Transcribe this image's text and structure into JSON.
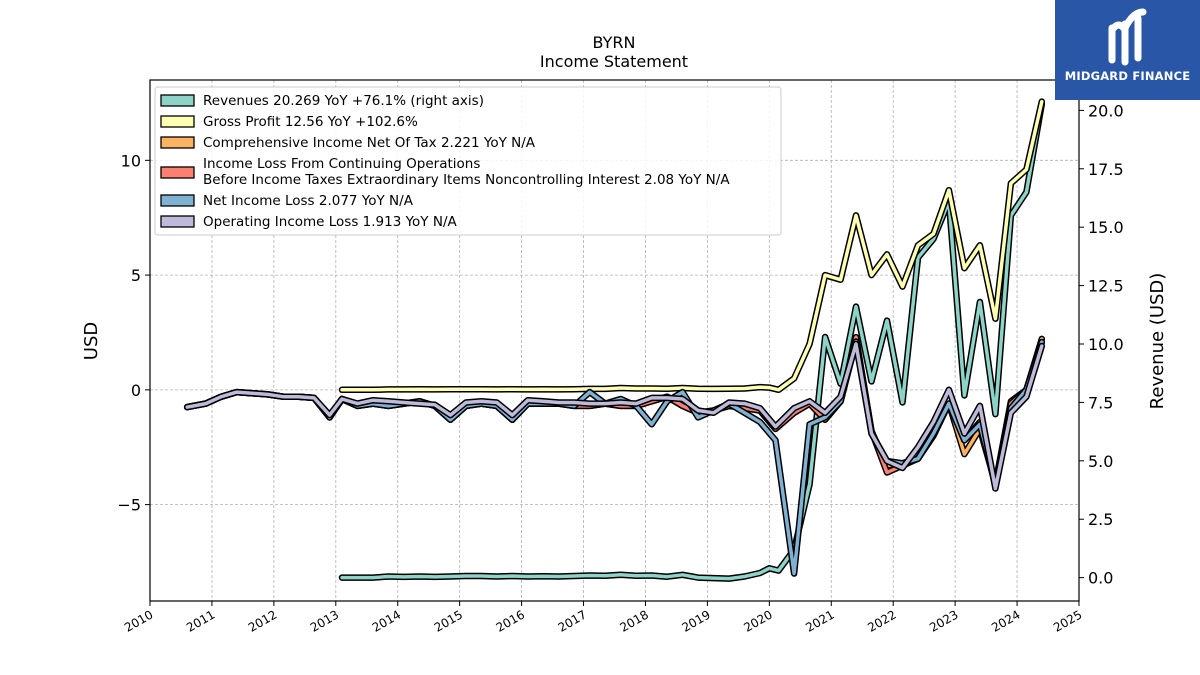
{
  "chart_data": {
    "type": "line",
    "title": "BYRN",
    "subtitle": "Income Statement",
    "ylabel": "USD",
    "y2label": "Revenue (USD)",
    "ylim": [
      -9.2,
      13.5
    ],
    "y2lim": [
      -1.0,
      21.3
    ],
    "yticks": [
      -5,
      0,
      5,
      10
    ],
    "y2ticks": [
      0.0,
      2.5,
      5.0,
      7.5,
      10.0,
      12.5,
      15.0,
      17.5,
      20.0
    ],
    "xlim": [
      2010,
      2025
    ],
    "xticks": [
      "2010",
      "2011",
      "2012",
      "2013",
      "2014",
      "2015",
      "2016",
      "2017",
      "2018",
      "2019",
      "2020",
      "2021",
      "2022",
      "2023",
      "2024",
      "2025"
    ],
    "grid": true,
    "legend_position": "top-left",
    "series": [
      {
        "name": "Revenues  20.269 YoY +76.1% (right axis)",
        "color": "#8dd3c7",
        "axis": "right",
        "x": [
          2013.1,
          2013.35,
          2013.6,
          2013.85,
          2014.1,
          2014.35,
          2014.6,
          2014.85,
          2015.1,
          2015.35,
          2015.6,
          2015.85,
          2016.1,
          2016.35,
          2016.6,
          2016.85,
          2017.1,
          2017.35,
          2017.6,
          2017.85,
          2018.1,
          2018.35,
          2018.6,
          2018.85,
          2019.1,
          2019.35,
          2019.6,
          2019.85,
          2020.0,
          2020.15,
          2020.4,
          2020.65,
          2020.9,
          2021.15,
          2021.4,
          2021.65,
          2021.9,
          2022.15,
          2022.4,
          2022.65,
          2022.9,
          2023.15,
          2023.4,
          2023.65,
          2023.9,
          2024.15,
          2024.4
        ],
        "values": [
          0.0,
          0.0,
          0.0,
          0.05,
          0.03,
          0.05,
          0.03,
          0.05,
          0.07,
          0.07,
          0.05,
          0.07,
          0.05,
          0.06,
          0.05,
          0.07,
          0.09,
          0.08,
          0.12,
          0.08,
          0.09,
          0.04,
          0.12,
          0.0,
          -0.02,
          -0.04,
          0.05,
          0.2,
          0.4,
          0.3,
          1.2,
          4.0,
          10.3,
          8.3,
          11.6,
          8.4,
          11.0,
          7.5,
          13.7,
          14.5,
          16.1,
          7.8,
          11.8,
          7.0,
          15.5,
          16.5,
          20.27
        ]
      },
      {
        "name": "Gross Profit  12.56 YoY +102.6%",
        "color": "#ffffb3",
        "axis": "left",
        "x": [
          2013.1,
          2013.35,
          2013.6,
          2013.85,
          2014.1,
          2014.35,
          2014.6,
          2014.85,
          2015.1,
          2015.35,
          2015.6,
          2015.85,
          2016.1,
          2016.35,
          2016.6,
          2016.85,
          2017.1,
          2017.35,
          2017.6,
          2017.85,
          2018.1,
          2018.35,
          2018.6,
          2018.85,
          2019.1,
          2019.35,
          2019.6,
          2019.85,
          2020.0,
          2020.15,
          2020.4,
          2020.65,
          2020.9,
          2021.15,
          2021.4,
          2021.65,
          2021.9,
          2022.15,
          2022.4,
          2022.65,
          2022.9,
          2023.15,
          2023.4,
          2023.65,
          2023.9,
          2024.15,
          2024.4
        ],
        "values": [
          0.0,
          0.0,
          0.0,
          0.02,
          0.02,
          0.03,
          0.02,
          0.03,
          0.03,
          0.03,
          0.02,
          0.03,
          0.02,
          0.03,
          0.02,
          0.03,
          0.04,
          0.04,
          0.08,
          0.06,
          0.06,
          0.05,
          0.08,
          0.05,
          0.04,
          0.05,
          0.06,
          0.12,
          0.1,
          0.0,
          0.5,
          2.0,
          5.0,
          4.8,
          7.6,
          5.0,
          5.9,
          4.5,
          6.3,
          6.8,
          8.7,
          5.3,
          6.3,
          3.1,
          9.0,
          9.6,
          12.56
        ]
      },
      {
        "name": "Comprehensive Income Net Of Tax  2.221 YoY N/A",
        "color": "#fdb462",
        "axis": "left",
        "x": [
          2010.6,
          2010.9,
          2011.15,
          2011.4,
          2011.65,
          2011.9,
          2012.15,
          2012.4,
          2012.65,
          2012.9,
          2013.1,
          2013.35,
          2013.6,
          2013.85,
          2014.1,
          2014.35,
          2014.6,
          2014.85,
          2015.1,
          2015.35,
          2015.6,
          2015.85,
          2016.1,
          2016.35,
          2016.6,
          2016.85,
          2017.1,
          2017.35,
          2017.6,
          2017.85,
          2018.1,
          2018.35,
          2018.6,
          2018.85,
          2019.1,
          2019.35,
          2019.6,
          2019.85,
          2020.1,
          2020.4,
          2020.65,
          2020.9,
          2021.15,
          2021.4,
          2021.65,
          2021.9,
          2022.15,
          2022.4,
          2022.65,
          2022.9,
          2023.15,
          2023.4,
          2023.65,
          2023.9,
          2024.15,
          2024.4
        ],
        "values": [
          -0.75,
          -0.6,
          -0.3,
          -0.1,
          -0.15,
          -0.2,
          -0.3,
          -0.3,
          -0.35,
          -1.2,
          -0.4,
          -0.7,
          -0.6,
          -0.7,
          -0.6,
          -0.5,
          -0.7,
          -1.3,
          -0.7,
          -0.6,
          -0.7,
          -1.3,
          -0.6,
          -0.6,
          -0.6,
          -0.7,
          -0.7,
          -0.6,
          -0.7,
          -0.7,
          -0.5,
          -0.3,
          -0.7,
          -1.0,
          -0.9,
          -0.7,
          -0.8,
          -0.9,
          -1.7,
          -1.0,
          -0.6,
          -1.3,
          -0.5,
          2.2,
          -1.8,
          -3.3,
          -3.2,
          -3.0,
          -2.0,
          -0.6,
          -2.8,
          -1.7,
          -4.1,
          -0.5,
          0.0,
          2.22
        ]
      },
      {
        "name": "Income Loss From Continuing Operations\nBefore Income Taxes Extraordinary Items Noncontrolling Interest  2.08 YoY N/A",
        "color": "#fb8072",
        "axis": "left",
        "x": [
          2010.6,
          2010.9,
          2011.15,
          2011.4,
          2011.65,
          2011.9,
          2012.15,
          2012.4,
          2012.65,
          2012.9,
          2013.1,
          2013.35,
          2013.6,
          2013.85,
          2014.1,
          2014.35,
          2014.6,
          2014.85,
          2015.1,
          2015.35,
          2015.6,
          2015.85,
          2016.1,
          2016.35,
          2016.6,
          2016.85,
          2017.1,
          2017.35,
          2017.6,
          2017.85,
          2018.1,
          2018.35,
          2018.6,
          2018.85,
          2019.1,
          2019.35,
          2019.6,
          2019.85,
          2020.1,
          2020.4,
          2020.65,
          2020.9,
          2021.15,
          2021.4,
          2021.65,
          2021.9,
          2022.15,
          2022.4,
          2022.65,
          2022.9,
          2023.15,
          2023.4,
          2023.65,
          2023.9,
          2024.15,
          2024.4
        ],
        "values": [
          -0.75,
          -0.6,
          -0.3,
          -0.1,
          -0.15,
          -0.2,
          -0.3,
          -0.3,
          -0.35,
          -1.2,
          -0.4,
          -0.7,
          -0.6,
          -0.7,
          -0.6,
          -0.5,
          -0.7,
          -1.3,
          -0.7,
          -0.6,
          -0.7,
          -1.3,
          -0.6,
          -0.6,
          -0.6,
          -0.7,
          -0.7,
          -0.6,
          -0.7,
          -0.7,
          -0.5,
          -0.3,
          -0.7,
          -1.0,
          -0.9,
          -0.7,
          -0.8,
          -0.9,
          -1.7,
          -1.0,
          -0.6,
          -1.3,
          -0.5,
          2.3,
          -1.8,
          -3.6,
          -3.3,
          -3.0,
          -1.8,
          -0.6,
          -2.2,
          -1.4,
          -4.2,
          -0.6,
          0.0,
          2.08
        ]
      },
      {
        "name": "Net Income Loss  2.077 YoY N/A",
        "color": "#80b1d3",
        "axis": "left",
        "x": [
          2010.6,
          2010.9,
          2011.15,
          2011.4,
          2011.65,
          2011.9,
          2012.15,
          2012.4,
          2012.65,
          2012.9,
          2013.1,
          2013.35,
          2013.6,
          2013.85,
          2014.1,
          2014.35,
          2014.6,
          2014.85,
          2015.1,
          2015.35,
          2015.6,
          2015.85,
          2016.1,
          2016.35,
          2016.6,
          2016.85,
          2017.1,
          2017.35,
          2017.6,
          2017.85,
          2018.1,
          2018.35,
          2018.6,
          2018.85,
          2019.1,
          2019.35,
          2019.6,
          2019.85,
          2020.1,
          2020.4,
          2020.65,
          2020.9,
          2021.15,
          2021.4,
          2021.65,
          2021.9,
          2022.15,
          2022.4,
          2022.65,
          2022.9,
          2023.15,
          2023.4,
          2023.65,
          2023.9,
          2024.15,
          2024.4
        ],
        "values": [
          -0.75,
          -0.6,
          -0.3,
          -0.1,
          -0.15,
          -0.2,
          -0.3,
          -0.3,
          -0.35,
          -1.2,
          -0.4,
          -0.7,
          -0.6,
          -0.7,
          -0.6,
          -0.5,
          -0.7,
          -1.3,
          -0.7,
          -0.6,
          -0.7,
          -1.3,
          -0.6,
          -0.6,
          -0.6,
          -0.7,
          -0.1,
          -0.6,
          -0.4,
          -0.7,
          -1.5,
          -0.5,
          -0.1,
          -1.2,
          -0.9,
          -0.6,
          -1.0,
          -1.4,
          -2.2,
          -8.0,
          -1.5,
          -1.2,
          -0.5,
          2.1,
          -1.9,
          -3.1,
          -3.2,
          -3.0,
          -1.9,
          -0.6,
          -2.2,
          -1.5,
          -4.1,
          -0.8,
          0.0,
          2.08
        ]
      },
      {
        "name": "Operating Income Loss  1.913 YoY N/A",
        "color": "#bebada",
        "axis": "left",
        "x": [
          2010.6,
          2010.9,
          2011.15,
          2011.4,
          2011.65,
          2011.9,
          2012.15,
          2012.4,
          2012.65,
          2012.9,
          2013.1,
          2013.35,
          2013.6,
          2013.85,
          2014.1,
          2014.35,
          2014.6,
          2014.85,
          2015.1,
          2015.35,
          2015.6,
          2015.85,
          2016.1,
          2016.35,
          2016.6,
          2016.85,
          2017.1,
          2017.35,
          2017.6,
          2017.85,
          2018.1,
          2018.35,
          2018.6,
          2018.85,
          2019.1,
          2019.35,
          2019.6,
          2019.85,
          2020.1,
          2020.4,
          2020.65,
          2020.9,
          2021.15,
          2021.4,
          2021.65,
          2021.9,
          2022.15,
          2022.4,
          2022.65,
          2022.9,
          2023.15,
          2023.4,
          2023.65,
          2023.9,
          2024.15,
          2024.4
        ],
        "values": [
          -0.75,
          -0.6,
          -0.3,
          -0.1,
          -0.15,
          -0.2,
          -0.3,
          -0.3,
          -0.35,
          -1.1,
          -0.4,
          -0.6,
          -0.45,
          -0.5,
          -0.55,
          -0.6,
          -0.65,
          -1.1,
          -0.55,
          -0.5,
          -0.55,
          -1.1,
          -0.45,
          -0.5,
          -0.55,
          -0.55,
          -0.6,
          -0.6,
          -0.55,
          -0.6,
          -0.35,
          -0.35,
          -0.4,
          -0.9,
          -1.0,
          -0.55,
          -0.6,
          -0.8,
          -1.6,
          -0.8,
          -0.5,
          -1.0,
          -0.3,
          2.0,
          -1.9,
          -3.1,
          -3.4,
          -2.5,
          -1.4,
          0.0,
          -1.9,
          -0.7,
          -4.3,
          -1.0,
          -0.3,
          1.91
        ]
      }
    ]
  },
  "logo": {
    "text": "MIDGARD FINANCE",
    "mark": "MF-monogram-icon"
  }
}
